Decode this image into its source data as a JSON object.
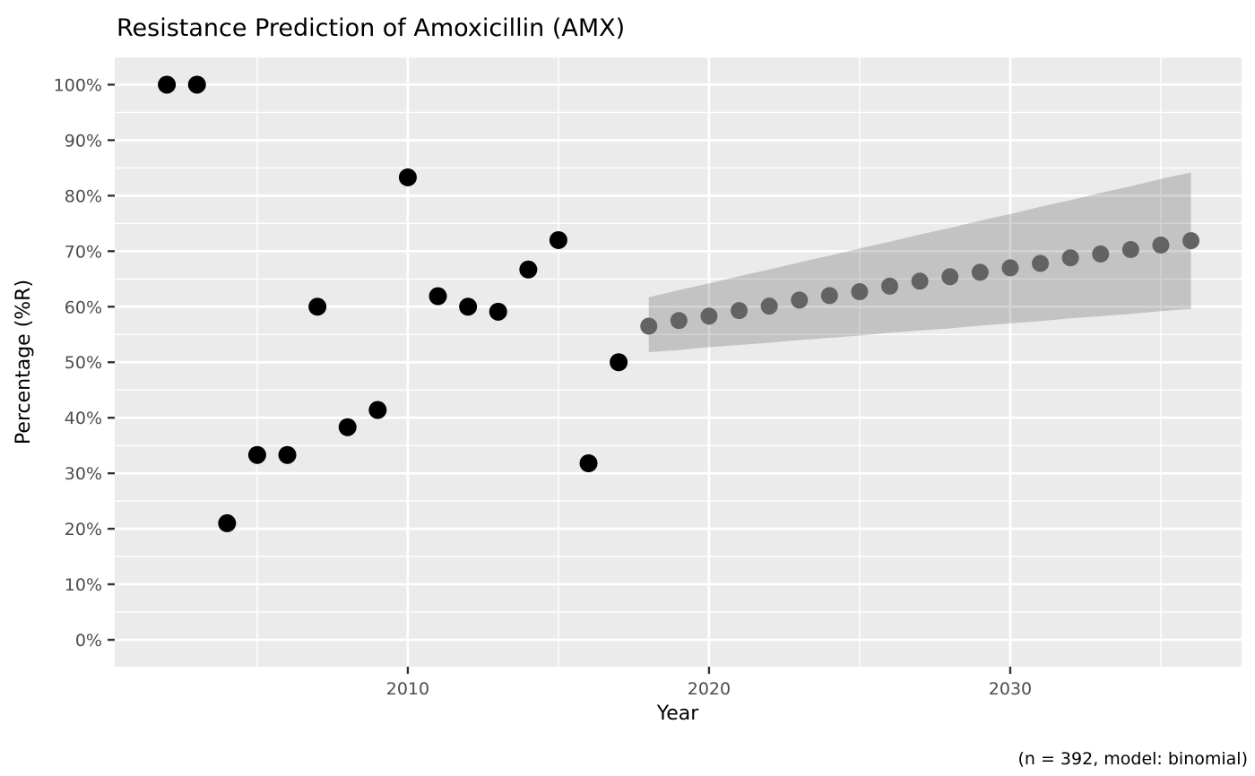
{
  "chart_data": {
    "type": "scatter",
    "title": "Resistance Prediction of Amoxicillin (AMX)",
    "xlabel": "Year",
    "ylabel": "Percentage (%R)",
    "caption": "(n = 392, model: binomial)",
    "xlim": [
      2000.27,
      2037.68
    ],
    "ylim": [
      -4.84,
      105.08
    ],
    "grid": true,
    "legend": "none",
    "x_ticks": [
      {
        "value": 2010,
        "label": "2010"
      },
      {
        "value": 2020,
        "label": "2020"
      },
      {
        "value": 2030,
        "label": "2030"
      }
    ],
    "x_minor": [
      2005,
      2015,
      2025,
      2035
    ],
    "y_ticks": [
      {
        "value": 0,
        "label": "0%"
      },
      {
        "value": 10,
        "label": "10%"
      },
      {
        "value": 20,
        "label": "20%"
      },
      {
        "value": 30,
        "label": "30%"
      },
      {
        "value": 40,
        "label": "40%"
      },
      {
        "value": 50,
        "label": "50%"
      },
      {
        "value": 60,
        "label": "60%"
      },
      {
        "value": 70,
        "label": "70%"
      },
      {
        "value": 80,
        "label": "80%"
      },
      {
        "value": 90,
        "label": "90%"
      },
      {
        "value": 100,
        "label": "100%"
      }
    ],
    "y_minor": [
      5,
      15,
      25,
      35,
      45,
      55,
      65,
      75,
      85,
      95,
      105
    ],
    "series": [
      {
        "name": "observed",
        "color": "#000000",
        "point_radius": 10,
        "points": [
          {
            "year": 2002,
            "value": 100.0
          },
          {
            "year": 2003,
            "value": 100.0
          },
          {
            "year": 2004,
            "value": 21.0
          },
          {
            "year": 2005,
            "value": 33.3
          },
          {
            "year": 2006,
            "value": 33.3
          },
          {
            "year": 2007,
            "value": 60.0
          },
          {
            "year": 2008,
            "value": 38.3
          },
          {
            "year": 2009,
            "value": 41.4
          },
          {
            "year": 2010,
            "value": 83.3
          },
          {
            "year": 2011,
            "value": 61.9
          },
          {
            "year": 2012,
            "value": 60.0
          },
          {
            "year": 2013,
            "value": 59.1
          },
          {
            "year": 2014,
            "value": 66.7
          },
          {
            "year": 2015,
            "value": 72.0
          },
          {
            "year": 2016,
            "value": 31.8
          },
          {
            "year": 2017,
            "value": 50.0
          }
        ]
      },
      {
        "name": "predicted",
        "color": "#636363",
        "point_radius": 9.5,
        "points": [
          {
            "year": 2018,
            "value": 56.5
          },
          {
            "year": 2019,
            "value": 57.5
          },
          {
            "year": 2020,
            "value": 58.3
          },
          {
            "year": 2021,
            "value": 59.3
          },
          {
            "year": 2022,
            "value": 60.1
          },
          {
            "year": 2023,
            "value": 61.2
          },
          {
            "year": 2024,
            "value": 62.0
          },
          {
            "year": 2025,
            "value": 62.7
          },
          {
            "year": 2026,
            "value": 63.7
          },
          {
            "year": 2027,
            "value": 64.6
          },
          {
            "year": 2028,
            "value": 65.4
          },
          {
            "year": 2029,
            "value": 66.2
          },
          {
            "year": 2030,
            "value": 67.0
          },
          {
            "year": 2031,
            "value": 67.8
          },
          {
            "year": 2032,
            "value": 68.8
          },
          {
            "year": 2033,
            "value": 69.5
          },
          {
            "year": 2034,
            "value": 70.3
          },
          {
            "year": 2035,
            "value": 71.1
          },
          {
            "year": 2036,
            "value": 71.9
          }
        ]
      }
    ],
    "ribbon": {
      "name": "confidence-interval",
      "fill": "rgba(0,0,0,0.17)",
      "points": [
        {
          "year": 2018,
          "lower": 51.8,
          "upper": 61.7
        },
        {
          "year": 2019,
          "lower": 52.2,
          "upper": 63.0
        },
        {
          "year": 2020,
          "lower": 52.7,
          "upper": 64.2
        },
        {
          "year": 2021,
          "lower": 53.1,
          "upper": 65.5
        },
        {
          "year": 2022,
          "lower": 53.5,
          "upper": 66.7
        },
        {
          "year": 2023,
          "lower": 54.0,
          "upper": 68.0
        },
        {
          "year": 2024,
          "lower": 54.4,
          "upper": 69.2
        },
        {
          "year": 2025,
          "lower": 54.8,
          "upper": 70.5
        },
        {
          "year": 2026,
          "lower": 55.3,
          "upper": 71.7
        },
        {
          "year": 2027,
          "lower": 55.7,
          "upper": 73.0
        },
        {
          "year": 2028,
          "lower": 56.1,
          "upper": 74.2
        },
        {
          "year": 2029,
          "lower": 56.6,
          "upper": 75.5
        },
        {
          "year": 2030,
          "lower": 57.0,
          "upper": 76.7
        },
        {
          "year": 2031,
          "lower": 57.4,
          "upper": 78.0
        },
        {
          "year": 2032,
          "lower": 57.9,
          "upper": 79.2
        },
        {
          "year": 2033,
          "lower": 58.3,
          "upper": 80.5
        },
        {
          "year": 2034,
          "lower": 58.7,
          "upper": 81.7
        },
        {
          "year": 2035,
          "lower": 59.2,
          "upper": 83.0
        },
        {
          "year": 2036,
          "lower": 59.6,
          "upper": 84.2
        }
      ]
    },
    "theme": {
      "panel_bg": "#ebebeb",
      "grid_major_color": "#ffffff",
      "grid_minor_color": "#ffffff",
      "tick_mark_color": "#333333",
      "tick_label_color": "#4d4d4d",
      "title_color": "#000000"
    }
  }
}
